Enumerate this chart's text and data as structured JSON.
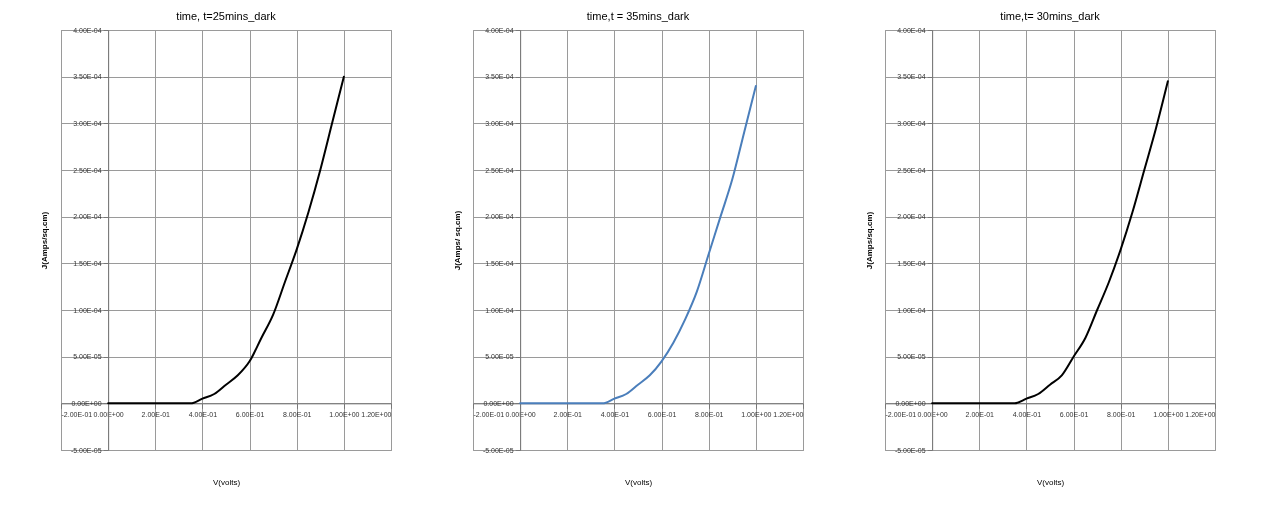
{
  "chart_data": [
    {
      "type": "line",
      "title": "time, t=25mins_dark",
      "xlabel": "V(volts)",
      "ylabel": "J(Amps/sq.cm)",
      "grid": true,
      "marker": "none",
      "line_style": "solid",
      "xlim": [
        -0.2,
        1.2
      ],
      "ylim": [
        -5e-05,
        0.0004
      ],
      "xticks": [
        {
          "value": -0.2,
          "label": "-2.00E-01"
        },
        {
          "value": 0,
          "label": "0.00E+00"
        },
        {
          "value": 0.2,
          "label": "2.00E-01"
        },
        {
          "value": 0.4,
          "label": "4.00E-01"
        },
        {
          "value": 0.6,
          "label": "6.00E-01"
        },
        {
          "value": 0.8,
          "label": "8.00E-01"
        },
        {
          "value": 1,
          "label": "1.00E+00"
        },
        {
          "value": 1.2,
          "label": "1.20E+00"
        }
      ],
      "yticks": [
        {
          "value": -5e-05,
          "label": "-5.00E-05"
        },
        {
          "value": 0,
          "label": "0.00E+00"
        },
        {
          "value": 5e-05,
          "label": "5.00E-05"
        },
        {
          "value": 0.0001,
          "label": "1.00E-04"
        },
        {
          "value": 0.00015,
          "label": "1.50E-04"
        },
        {
          "value": 0.0002,
          "label": "2.00E-04"
        },
        {
          "value": 0.00025,
          "label": "2.50E-04"
        },
        {
          "value": 0.0003,
          "label": "3.00E-04"
        },
        {
          "value": 0.00035,
          "label": "3.50E-04"
        },
        {
          "value": 0.0004,
          "label": "4.00E-04"
        }
      ],
      "x": [
        0,
        0.1,
        0.2,
        0.3,
        0.35,
        0.4,
        0.45,
        0.5,
        0.55,
        0.6,
        0.65,
        0.7,
        0.75,
        0.8,
        0.85,
        0.9,
        0.95,
        1.0
      ],
      "series": [
        {
          "color": "#000000",
          "values": [
            0,
            0,
            0,
            0,
            0,
            5e-06,
            1e-05,
            2e-05,
            3e-05,
            4.5e-05,
            7e-05,
            9.5e-05,
            0.00013,
            0.000165,
            0.000205,
            0.00025,
            0.0003,
            0.00035
          ]
        }
      ]
    },
    {
      "type": "line",
      "title": "time,t = 35mins_dark",
      "xlabel": "V(volts)",
      "ylabel": "J(Amps/ sq.cm)",
      "grid": true,
      "marker": "none",
      "line_style": "solid",
      "xlim": [
        -0.2,
        1.2
      ],
      "ylim": [
        -5e-05,
        0.0004
      ],
      "xticks": [
        {
          "value": -0.2,
          "label": "-2.00E-01"
        },
        {
          "value": 0,
          "label": "0.00E+00"
        },
        {
          "value": 0.2,
          "label": "2.00E-01"
        },
        {
          "value": 0.4,
          "label": "4.00E-01"
        },
        {
          "value": 0.6,
          "label": "6.00E-01"
        },
        {
          "value": 0.8,
          "label": "8.00E-01"
        },
        {
          "value": 1,
          "label": "1.00E+00"
        },
        {
          "value": 1.2,
          "label": "1.20E+00"
        }
      ],
      "yticks": [
        {
          "value": -5e-05,
          "label": "-5.00E-05"
        },
        {
          "value": 0,
          "label": "0.00E+00"
        },
        {
          "value": 5e-05,
          "label": "5.00E-05"
        },
        {
          "value": 0.0001,
          "label": "1.00E-04"
        },
        {
          "value": 0.00015,
          "label": "1.50E-04"
        },
        {
          "value": 0.0002,
          "label": "2.00E-04"
        },
        {
          "value": 0.00025,
          "label": "2.50E-04"
        },
        {
          "value": 0.0003,
          "label": "3.00E-04"
        },
        {
          "value": 0.00035,
          "label": "3.50E-04"
        },
        {
          "value": 0.0004,
          "label": "4.00E-04"
        }
      ],
      "x": [
        0,
        0.1,
        0.2,
        0.3,
        0.35,
        0.4,
        0.45,
        0.5,
        0.55,
        0.6,
        0.65,
        0.7,
        0.75,
        0.8,
        0.85,
        0.9,
        0.95,
        1.0
      ],
      "series": [
        {
          "color": "#4a7ebb",
          "values": [
            0,
            0,
            0,
            0,
            0,
            5e-06,
            1e-05,
            2e-05,
            3e-05,
            4.5e-05,
            6.5e-05,
            9e-05,
            0.00012,
            0.00016,
            0.0002,
            0.00024,
            0.00029,
            0.00034
          ]
        }
      ]
    },
    {
      "type": "line",
      "title": "time,t= 30mins_dark",
      "xlabel": "V(volts)",
      "ylabel": "J(Amps/sq.cm)",
      "grid": true,
      "marker": "none",
      "line_style": "solid",
      "xlim": [
        -0.2,
        1.2
      ],
      "ylim": [
        -5e-05,
        0.0004
      ],
      "xticks": [
        {
          "value": -0.2,
          "label": "-2.00E-01"
        },
        {
          "value": 0,
          "label": "0.00E+00"
        },
        {
          "value": 0.2,
          "label": "2.00E-01"
        },
        {
          "value": 0.4,
          "label": "4.00E-01"
        },
        {
          "value": 0.6,
          "label": "6.00E-01"
        },
        {
          "value": 0.8,
          "label": "8.00E-01"
        },
        {
          "value": 1,
          "label": "1.00E+00"
        },
        {
          "value": 1.2,
          "label": "1.20E+00"
        }
      ],
      "yticks": [
        {
          "value": -5e-05,
          "label": "-5.00E-05"
        },
        {
          "value": 0,
          "label": "0.00E+00"
        },
        {
          "value": 5e-05,
          "label": "5.00E-05"
        },
        {
          "value": 0.0001,
          "label": "1.00E-04"
        },
        {
          "value": 0.00015,
          "label": "1.50E-04"
        },
        {
          "value": 0.0002,
          "label": "2.00E-04"
        },
        {
          "value": 0.00025,
          "label": "2.50E-04"
        },
        {
          "value": 0.0003,
          "label": "3.00E-04"
        },
        {
          "value": 0.00035,
          "label": "3.50E-04"
        },
        {
          "value": 0.0004,
          "label": "4.00E-04"
        }
      ],
      "x": [
        0,
        0.1,
        0.2,
        0.3,
        0.35,
        0.4,
        0.45,
        0.5,
        0.55,
        0.6,
        0.65,
        0.7,
        0.75,
        0.8,
        0.85,
        0.9,
        0.95,
        1.0
      ],
      "series": [
        {
          "color": "#000000",
          "values": [
            0,
            0,
            0,
            0,
            0,
            5e-06,
            1e-05,
            2e-05,
            3e-05,
            5e-05,
            7e-05,
            0.0001,
            0.00013,
            0.000165,
            0.000205,
            0.00025,
            0.000295,
            0.000345
          ]
        }
      ]
    }
  ]
}
